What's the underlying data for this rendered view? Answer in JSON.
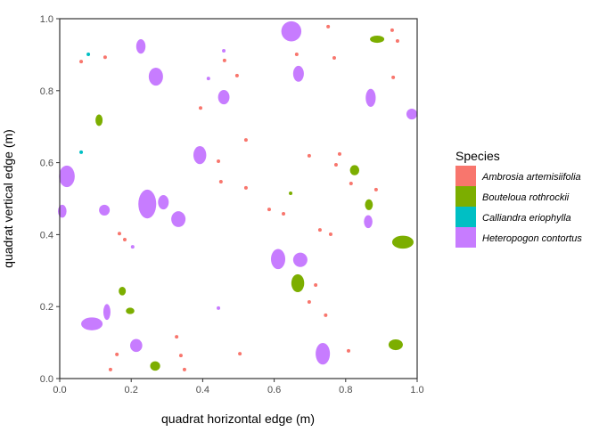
{
  "chart_data": {
    "type": "scatter",
    "title": "",
    "xlabel": "quadrat horizontal edge (m)",
    "ylabel": "quadrat vertical edge (m)",
    "xlim": [
      0,
      1
    ],
    "ylim": [
      0,
      1
    ],
    "x_ticks": [
      "0.0",
      "0.2",
      "0.4",
      "0.6",
      "0.8",
      "1.0"
    ],
    "y_ticks": [
      "0.0",
      "0.2",
      "0.4",
      "0.6",
      "0.8",
      "1.0"
    ],
    "grid": false,
    "legend": {
      "title": "Species",
      "placement": "right",
      "entries": [
        {
          "name": "Ambrosia artemisiifolia",
          "color": "#F8766D"
        },
        {
          "name": "Bouteloua rothrockii",
          "color": "#7CAE00"
        },
        {
          "name": "Calliandra eriophylla",
          "color": "#00BFC4"
        },
        {
          "name": "Heteropogon contortus",
          "color": "#C77CFF"
        }
      ]
    },
    "plants": [
      {
        "s": 0,
        "x": 0.06,
        "y": 0.881
      },
      {
        "s": 0,
        "x": 0.127,
        "y": 0.893
      },
      {
        "s": 0,
        "x": 0.461,
        "y": 0.884
      },
      {
        "s": 0,
        "x": 0.496,
        "y": 0.842
      },
      {
        "s": 0,
        "x": 0.394,
        "y": 0.752
      },
      {
        "s": 0,
        "x": 0.444,
        "y": 0.604
      },
      {
        "s": 0,
        "x": 0.451,
        "y": 0.547
      },
      {
        "s": 0,
        "x": 0.751,
        "y": 0.978
      },
      {
        "s": 0,
        "x": 0.93,
        "y": 0.968
      },
      {
        "s": 0,
        "x": 0.945,
        "y": 0.938
      },
      {
        "s": 0,
        "x": 0.663,
        "y": 0.901
      },
      {
        "s": 0,
        "x": 0.768,
        "y": 0.891
      },
      {
        "s": 0,
        "x": 0.933,
        "y": 0.837
      },
      {
        "s": 0,
        "x": 0.521,
        "y": 0.663
      },
      {
        "s": 0,
        "x": 0.698,
        "y": 0.619
      },
      {
        "s": 0,
        "x": 0.783,
        "y": 0.624
      },
      {
        "s": 0,
        "x": 0.773,
        "y": 0.594
      },
      {
        "s": 0,
        "x": 0.521,
        "y": 0.53
      },
      {
        "s": 0,
        "x": 0.815,
        "y": 0.542
      },
      {
        "s": 0,
        "x": 0.885,
        "y": 0.525
      },
      {
        "s": 0,
        "x": 0.167,
        "y": 0.403
      },
      {
        "s": 0,
        "x": 0.182,
        "y": 0.386
      },
      {
        "s": 0,
        "x": 0.327,
        "y": 0.116
      },
      {
        "s": 0,
        "x": 0.16,
        "y": 0.067
      },
      {
        "s": 0,
        "x": 0.339,
        "y": 0.064
      },
      {
        "s": 0,
        "x": 0.504,
        "y": 0.069
      },
      {
        "s": 0,
        "x": 0.142,
        "y": 0.025
      },
      {
        "s": 0,
        "x": 0.349,
        "y": 0.025
      },
      {
        "s": 0,
        "x": 0.586,
        "y": 0.47
      },
      {
        "s": 0,
        "x": 0.626,
        "y": 0.458
      },
      {
        "s": 0,
        "x": 0.728,
        "y": 0.413
      },
      {
        "s": 0,
        "x": 0.758,
        "y": 0.401
      },
      {
        "s": 0,
        "x": 0.716,
        "y": 0.26
      },
      {
        "s": 0,
        "x": 0.698,
        "y": 0.213
      },
      {
        "s": 0,
        "x": 0.744,
        "y": 0.176
      },
      {
        "s": 0,
        "x": 0.808,
        "y": 0.077
      },
      {
        "s": 1,
        "x": 0.11,
        "y": 0.718,
        "rx": 0.01,
        "ry": 0.016
      },
      {
        "s": 1,
        "x": 0.888,
        "y": 0.943,
        "rx": 0.02,
        "ry": 0.01
      },
      {
        "s": 1,
        "x": 0.825,
        "y": 0.579,
        "rx": 0.013,
        "ry": 0.014
      },
      {
        "s": 1,
        "x": 0.646,
        "y": 0.515
      },
      {
        "s": 1,
        "x": 0.175,
        "y": 0.243,
        "rx": 0.01,
        "ry": 0.012
      },
      {
        "s": 1,
        "x": 0.197,
        "y": 0.188,
        "rx": 0.012,
        "ry": 0.009
      },
      {
        "s": 1,
        "x": 0.267,
        "y": 0.035,
        "rx": 0.014,
        "ry": 0.013
      },
      {
        "s": 1,
        "x": 0.865,
        "y": 0.483,
        "rx": 0.011,
        "ry": 0.015
      },
      {
        "s": 1,
        "x": 0.96,
        "y": 0.379,
        "rx": 0.03,
        "ry": 0.018
      },
      {
        "s": 1,
        "x": 0.666,
        "y": 0.265,
        "rx": 0.018,
        "ry": 0.025
      },
      {
        "s": 1,
        "x": 0.94,
        "y": 0.094,
        "rx": 0.02,
        "ry": 0.015
      },
      {
        "s": 2,
        "x": 0.08,
        "y": 0.901
      },
      {
        "s": 2,
        "x": 0.06,
        "y": 0.629
      },
      {
        "s": 3,
        "x": 0.227,
        "y": 0.923,
        "rx": 0.013,
        "ry": 0.02
      },
      {
        "s": 3,
        "x": 0.269,
        "y": 0.839,
        "rx": 0.02,
        "ry": 0.025
      },
      {
        "s": 3,
        "x": 0.459,
        "y": 0.911
      },
      {
        "s": 3,
        "x": 0.416,
        "y": 0.834
      },
      {
        "s": 3,
        "x": 0.459,
        "y": 0.782,
        "rx": 0.016,
        "ry": 0.02
      },
      {
        "s": 3,
        "x": 0.392,
        "y": 0.621,
        "rx": 0.018,
        "ry": 0.025
      },
      {
        "s": 3,
        "x": 0.02,
        "y": 0.562,
        "rx": 0.022,
        "ry": 0.03
      },
      {
        "s": 3,
        "x": 0.648,
        "y": 0.965,
        "rx": 0.028,
        "ry": 0.028
      },
      {
        "s": 3,
        "x": 0.668,
        "y": 0.847,
        "rx": 0.015,
        "ry": 0.022
      },
      {
        "s": 3,
        "x": 0.87,
        "y": 0.78,
        "rx": 0.014,
        "ry": 0.025
      },
      {
        "s": 3,
        "x": 0.985,
        "y": 0.735,
        "rx": 0.015,
        "ry": 0.015
      },
      {
        "s": 3,
        "x": 0.007,
        "y": 0.465,
        "rx": 0.012,
        "ry": 0.018
      },
      {
        "s": 3,
        "x": 0.125,
        "y": 0.468,
        "rx": 0.015,
        "ry": 0.015
      },
      {
        "s": 3,
        "x": 0.245,
        "y": 0.485,
        "rx": 0.025,
        "ry": 0.04
      },
      {
        "s": 3,
        "x": 0.29,
        "y": 0.49,
        "rx": 0.015,
        "ry": 0.02
      },
      {
        "s": 3,
        "x": 0.332,
        "y": 0.443,
        "rx": 0.02,
        "ry": 0.022
      },
      {
        "s": 3,
        "x": 0.204,
        "y": 0.366
      },
      {
        "s": 3,
        "x": 0.444,
        "y": 0.196
      },
      {
        "s": 3,
        "x": 0.09,
        "y": 0.152,
        "rx": 0.03,
        "ry": 0.018
      },
      {
        "s": 3,
        "x": 0.132,
        "y": 0.185,
        "rx": 0.01,
        "ry": 0.022
      },
      {
        "s": 3,
        "x": 0.214,
        "y": 0.092,
        "rx": 0.017,
        "ry": 0.018
      },
      {
        "s": 3,
        "x": 0.863,
        "y": 0.436,
        "rx": 0.012,
        "ry": 0.018
      },
      {
        "s": 3,
        "x": 0.611,
        "y": 0.332,
        "rx": 0.02,
        "ry": 0.028
      },
      {
        "s": 3,
        "x": 0.673,
        "y": 0.33,
        "rx": 0.02,
        "ry": 0.02
      },
      {
        "s": 3,
        "x": 0.736,
        "y": 0.069,
        "rx": 0.02,
        "ry": 0.03
      }
    ]
  }
}
